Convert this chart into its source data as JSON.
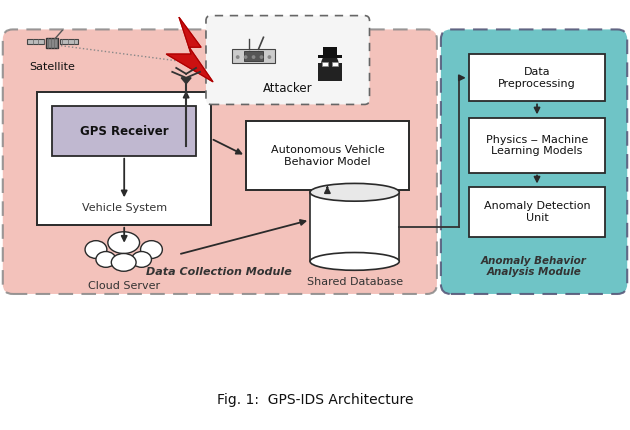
{
  "title": "Fig. 1:  GPS-IDS Architecture",
  "bg_color": "#ffffff",
  "pink_bg": "#f2b8b0",
  "teal_bg": "#5bbcbf",
  "box_fc": "#ffffff",
  "box_ec": "#2a2a2a",
  "gps_fc": "#c0b8d0",
  "arrow_color": "#2a2a2a",
  "dot_color": "#555555",
  "pink_label": "Data Collection Module",
  "teal_label": "Anomaly Behavior\nAnalysis Module"
}
